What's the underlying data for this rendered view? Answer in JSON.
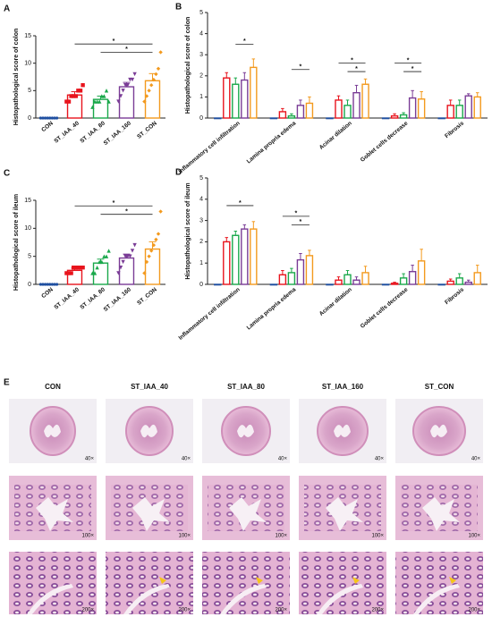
{
  "chart_data": [
    {
      "type": "bar",
      "panel": "A",
      "ylabel": "Histopathological score of colon",
      "categories": [
        "CON",
        "ST_IAA_40",
        "ST_IAA_80",
        "ST_IAA_160",
        "ST_CON"
      ],
      "colors": [
        "#1f4fa0",
        "#e8141d",
        "#1aa84b",
        "#7a3c96",
        "#f39a1e"
      ],
      "values": [
        0,
        4.2,
        3.4,
        5.7,
        6.8
      ],
      "errors": [
        0,
        0.6,
        0.6,
        0.8,
        1.3
      ],
      "points": [
        [
          0,
          0,
          0,
          0,
          0,
          0,
          0,
          0
        ],
        [
          3,
          3,
          4,
          4,
          4,
          5,
          5,
          6
        ],
        [
          2,
          3,
          3,
          3,
          4,
          4,
          5,
          3
        ],
        [
          3,
          4,
          5,
          6,
          6,
          7,
          7,
          8
        ],
        [
          3,
          4,
          5,
          6,
          7,
          8,
          9,
          12
        ]
      ],
      "ylim": [
        0,
        15
      ],
      "yticks": [
        0,
        5,
        10,
        15
      ],
      "significance": [
        {
          "from": 1,
          "to": 4,
          "y": 13.5,
          "label": "*"
        },
        {
          "from": 2,
          "to": 4,
          "y": 12,
          "label": "*"
        }
      ]
    },
    {
      "type": "grouped_bar",
      "panel": "B",
      "ylabel": "Histopathological score of colon",
      "categories": [
        "Inflammatory cell infiltration",
        "Lamina propria edema",
        "Acinar dilation",
        "Goblet cells decrease",
        "Fibrosis"
      ],
      "series": [
        {
          "color": "#1f4fa0",
          "values": [
            0,
            0,
            0,
            0,
            0
          ],
          "errors": [
            0,
            0,
            0,
            0,
            0
          ]
        },
        {
          "color": "#e8141d",
          "values": [
            1.9,
            0.3,
            0.85,
            0.1,
            0.6
          ],
          "errors": [
            0.25,
            0.15,
            0.2,
            0.1,
            0.25
          ]
        },
        {
          "color": "#1aa84b",
          "values": [
            1.6,
            0.1,
            0.6,
            0.15,
            0.6
          ],
          "errors": [
            0.3,
            0.1,
            0.25,
            0.1,
            0.25
          ]
        },
        {
          "color": "#7a3c96",
          "values": [
            1.8,
            0.6,
            1.2,
            0.95,
            1.05
          ],
          "errors": [
            0.35,
            0.25,
            0.35,
            0.35,
            0.1
          ]
        },
        {
          "color": "#f39a1e",
          "values": [
            2.4,
            0.7,
            1.6,
            0.9,
            1.0
          ],
          "errors": [
            0.4,
            0.3,
            0.25,
            0.35,
            0.2
          ]
        }
      ],
      "ylim": [
        0,
        5
      ],
      "yticks": [
        0,
        1,
        2,
        3,
        4,
        5
      ],
      "significance": [
        {
          "group": 0,
          "from": 2,
          "to": 4,
          "y": 3.5,
          "label": "*"
        },
        {
          "group": 1,
          "from": 2,
          "to": 4,
          "y": 2.3,
          "label": "*"
        },
        {
          "group": 2,
          "from": 1,
          "to": 4,
          "y": 2.6,
          "label": "*"
        },
        {
          "group": 2,
          "from": 2,
          "to": 4,
          "y": 2.2,
          "label": "*"
        },
        {
          "group": 3,
          "from": 1,
          "to": 4,
          "y": 2.6,
          "label": "*"
        },
        {
          "group": 3,
          "from": 2,
          "to": 4,
          "y": 2.2,
          "label": "*"
        }
      ]
    },
    {
      "type": "bar",
      "panel": "C",
      "ylabel": "Histopathological score of ileum",
      "categories": [
        "CON",
        "ST_IAA_40",
        "ST_IAA_80",
        "ST_IAA_160",
        "ST_CON"
      ],
      "colors": [
        "#1f4fa0",
        "#e8141d",
        "#1aa84b",
        "#7a3c96",
        "#f39a1e"
      ],
      "values": [
        0,
        2.5,
        3.8,
        4.7,
        6.3
      ],
      "errors": [
        0,
        0.4,
        0.7,
        0.7,
        1.3
      ],
      "points": [
        [
          0,
          0,
          0,
          0,
          0,
          0,
          0,
          0
        ],
        [
          2,
          2,
          2,
          3,
          3,
          3,
          3,
          3
        ],
        [
          2,
          2,
          3,
          4,
          4,
          5,
          5,
          6
        ],
        [
          2,
          3,
          4,
          5,
          5,
          5,
          6,
          7
        ],
        [
          2,
          4,
          5,
          6,
          7,
          8,
          9,
          13
        ]
      ],
      "ylim": [
        0,
        15
      ],
      "yticks": [
        0,
        5,
        10,
        15
      ],
      "significance": [
        {
          "from": 1,
          "to": 4,
          "y": 14,
          "label": "*"
        },
        {
          "from": 2,
          "to": 4,
          "y": 12.5,
          "label": "*"
        }
      ]
    },
    {
      "type": "grouped_bar",
      "panel": "D",
      "ylabel": "Histopathological score of ileum",
      "categories": [
        "Inflammatory cell infiltration",
        "Lamina propria edema",
        "Acinar dilation",
        "Goblet cells decrease",
        "Fibrosis"
      ],
      "series": [
        {
          "color": "#1f4fa0",
          "values": [
            0,
            0,
            0,
            0,
            0
          ],
          "errors": [
            0,
            0,
            0,
            0,
            0
          ]
        },
        {
          "color": "#e8141d",
          "values": [
            2.0,
            0.45,
            0.2,
            0.05,
            0.15
          ],
          "errors": [
            0.2,
            0.2,
            0.15,
            0.05,
            0.1
          ]
        },
        {
          "color": "#1aa84b",
          "values": [
            2.3,
            0.55,
            0.45,
            0.3,
            0.3
          ],
          "errors": [
            0.2,
            0.2,
            0.2,
            0.2,
            0.2
          ]
        },
        {
          "color": "#7a3c96",
          "values": [
            2.6,
            1.15,
            0.2,
            0.6,
            0.1
          ],
          "errors": [
            0.2,
            0.3,
            0.15,
            0.3,
            0.1
          ]
        },
        {
          "color": "#f39a1e",
          "values": [
            2.6,
            1.35,
            0.55,
            1.1,
            0.55
          ],
          "errors": [
            0.35,
            0.25,
            0.3,
            0.55,
            0.35
          ]
        }
      ],
      "ylim": [
        0,
        5
      ],
      "yticks": [
        0,
        1,
        2,
        3,
        4,
        5
      ],
      "significance": [
        {
          "group": 0,
          "from": 1,
          "to": 4,
          "y": 3.7,
          "label": "*"
        },
        {
          "group": 1,
          "from": 1,
          "to": 4,
          "y": 3.2,
          "label": "*"
        },
        {
          "group": 1,
          "from": 2,
          "to": 4,
          "y": 2.8,
          "label": "*"
        }
      ]
    }
  ],
  "histology": {
    "panel": "E",
    "columns": [
      "CON",
      "ST_IAA_40",
      "ST_IAA_80",
      "ST_IAA_160",
      "ST_CON"
    ],
    "magnifications": [
      "40×",
      "100×",
      "200×"
    ]
  }
}
